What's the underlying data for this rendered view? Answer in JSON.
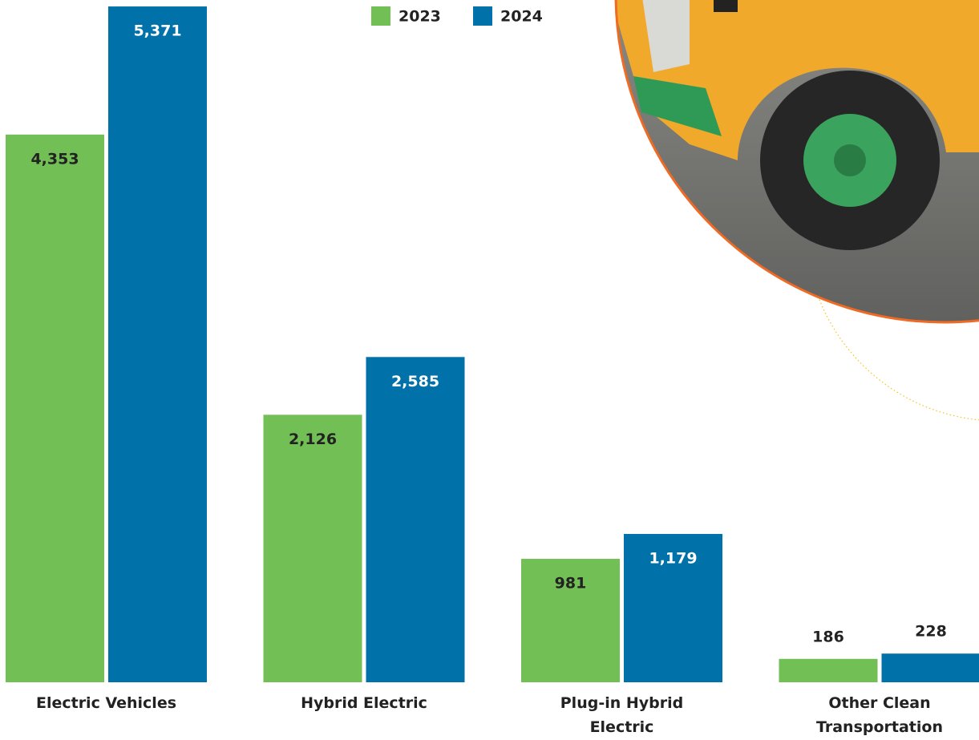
{
  "chart_data": {
    "type": "bar",
    "categories": [
      "Electric Vehicles",
      "Hybrid Electric",
      "Plug-in Hybrid Electric",
      "Other Clean Transportation"
    ],
    "series": [
      {
        "name": "2023",
        "color": "#72bf55",
        "values": [
          4353,
          2126,
          981,
          186
        ],
        "value_labels": [
          "4,353",
          "2,126",
          "981",
          "186"
        ]
      },
      {
        "name": "2024",
        "color": "#0071a9",
        "values": [
          5371,
          2585,
          1179,
          228
        ],
        "value_labels": [
          "5,371",
          "2,585",
          "1,179",
          "228"
        ]
      }
    ],
    "ylim": [
      0,
      5400
    ],
    "legend": "top"
  }
}
